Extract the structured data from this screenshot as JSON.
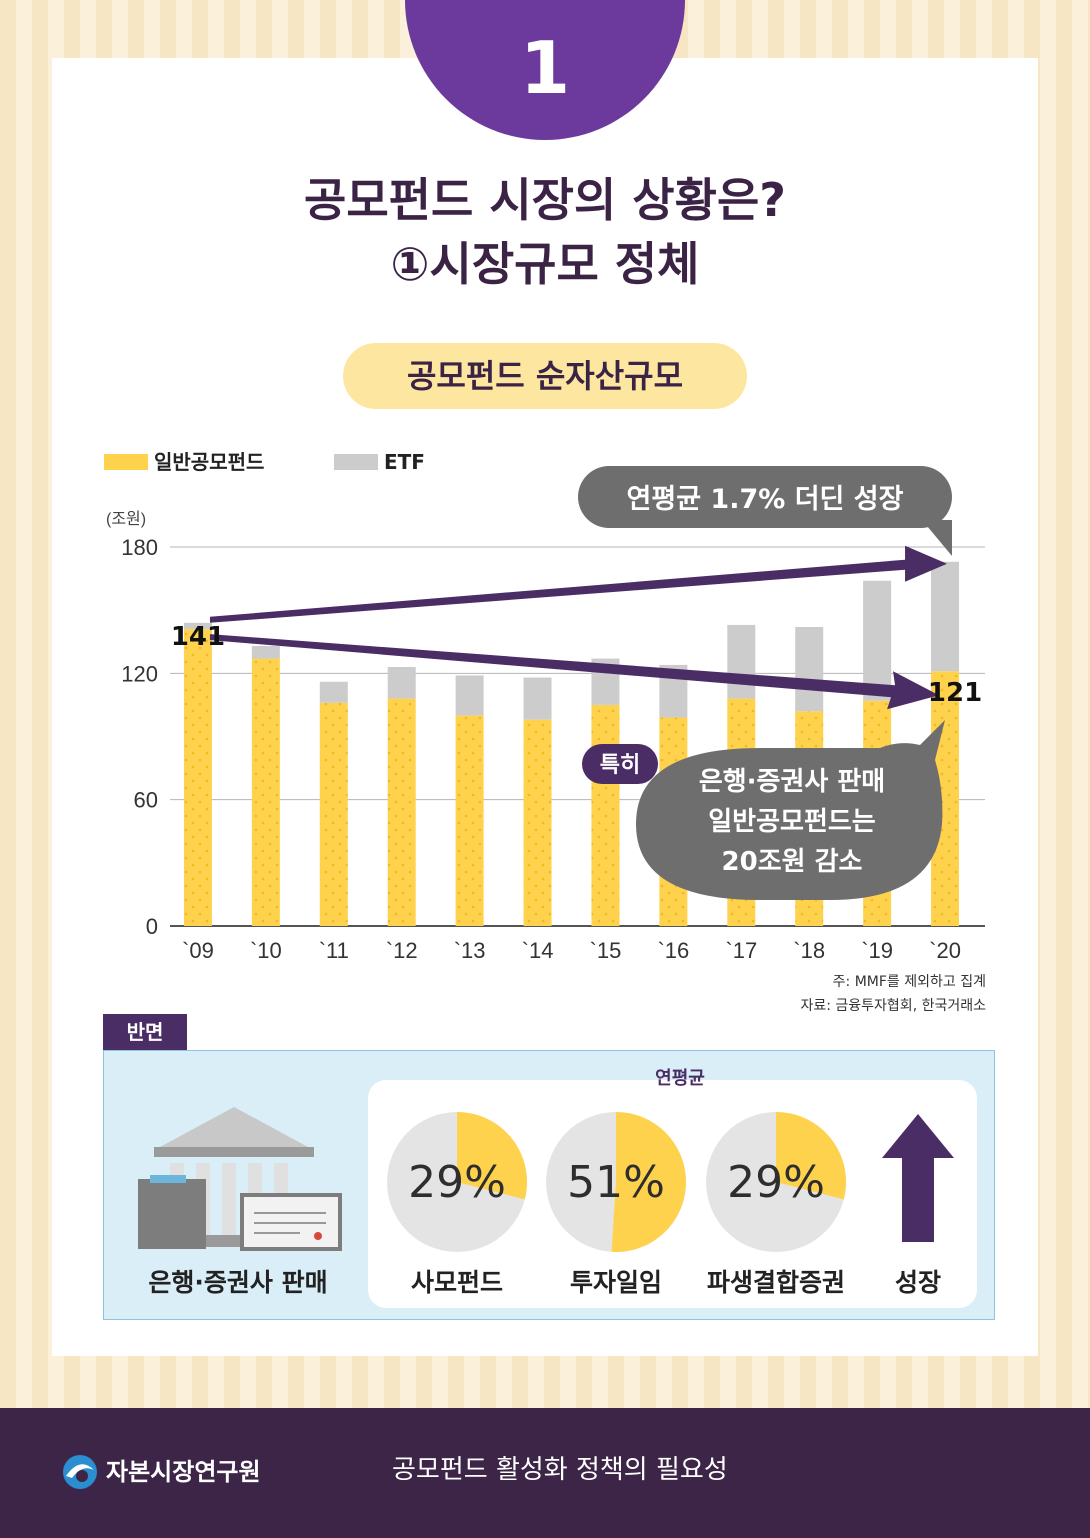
{
  "header": {
    "number": "1",
    "title_line1": "공모펀드 시장의 상황은?",
    "title_line2": "①시장규모 정체"
  },
  "chart_section": {
    "pill_title": "공모펀드 순자산규모",
    "unit": "(조원)",
    "callout_growth": "연평균 1.7% 더딘 성장",
    "special_tag": "특히",
    "callout_decline_lines": [
      "은행·증권사 판매",
      "일반공모펀드는",
      "20조원 감소"
    ],
    "note_line1": "주: MMF를 제외하고 집계",
    "note_line2": "자료: 금융투자협회, 한국거래소"
  },
  "chart_data": {
    "type": "bar",
    "stacked": true,
    "categories": [
      "`09",
      "`10",
      "`11",
      "`12",
      "`13",
      "`14",
      "`15",
      "`16",
      "`17",
      "`18",
      "`19",
      "`20"
    ],
    "series": [
      {
        "name": "일반공모펀드",
        "color": "#ffd24d",
        "values": [
          141,
          127,
          106,
          108,
          100,
          98,
          105,
          99,
          108,
          102,
          107,
          121
        ]
      },
      {
        "name": "ETF",
        "color": "#cccccc",
        "values": [
          3,
          6,
          10,
          15,
          19,
          20,
          22,
          25,
          35,
          40,
          57,
          52
        ]
      }
    ],
    "ylim": [
      0,
      180
    ],
    "yticks": [
      0,
      60,
      120,
      180
    ],
    "data_labels": {
      "first": "141",
      "last": "121"
    },
    "grid": true,
    "legend": "top-left"
  },
  "contrast_section": {
    "tag": "반면",
    "bank_label": "은행·증권사 판매",
    "annual_label": "연평균",
    "pies": [
      {
        "label": "사모펀드",
        "pct_text": "29%",
        "value": 29
      },
      {
        "label": "투자일임",
        "pct_text": "51%",
        "value": 51
      },
      {
        "label": "파생결합증권",
        "pct_text": "29%",
        "value": 29
      }
    ],
    "growth_label": "성장"
  },
  "footer": {
    "org": "자본시장연구원",
    "description": "공모펀드 활성화 정책의 필요성"
  },
  "colors": {
    "purple": "#4b2d66",
    "accent_purple": "#6b3a9c",
    "yellow": "#ffd24d",
    "grey": "#cccccc",
    "callout_grey": "#6e6e6e"
  }
}
